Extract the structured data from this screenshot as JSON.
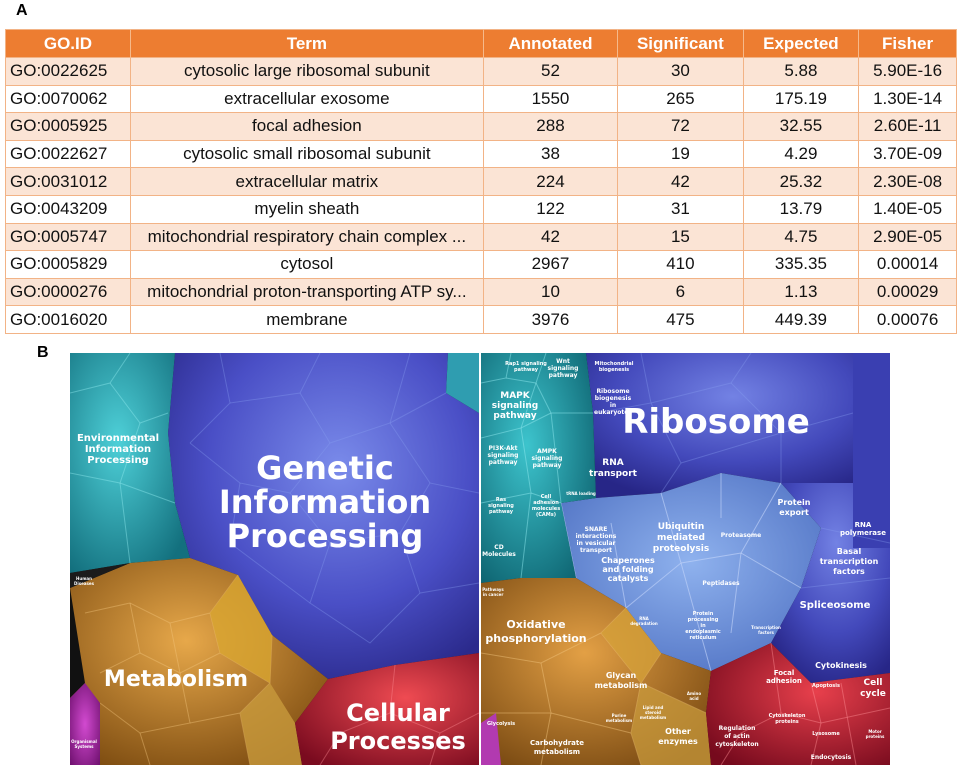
{
  "panel_a_label": "A",
  "panel_b_label": "B",
  "table": {
    "headers": [
      "GO.ID",
      "Term",
      "Annotated",
      "Significant",
      "Expected",
      "Fisher"
    ],
    "rows": [
      [
        "GO:0022625",
        "cytosolic large ribosomal subunit",
        "52",
        "30",
        "5.88",
        "5.90E-16"
      ],
      [
        "GO:0070062",
        "extracellular exosome",
        "1550",
        "265",
        "175.19",
        "1.30E-14"
      ],
      [
        "GO:0005925",
        "focal adhesion",
        "288",
        "72",
        "32.55",
        "2.60E-11"
      ],
      [
        "GO:0022627",
        "cytosolic small ribosomal subunit",
        "38",
        "19",
        "4.29",
        "3.70E-09"
      ],
      [
        "GO:0031012",
        "extracellular matrix",
        "224",
        "42",
        "25.32",
        "2.30E-08"
      ],
      [
        "GO:0043209",
        "myelin sheath",
        "122",
        "31",
        "13.79",
        "1.40E-05"
      ],
      [
        "GO:0005747",
        "mitochondrial respiratory chain complex ...",
        "42",
        "15",
        "4.75",
        "2.90E-05"
      ],
      [
        "GO:0005829",
        "cytosol",
        "2967",
        "410",
        "335.35",
        "0.00014"
      ],
      [
        "GO:0000276",
        "mitochondrial proton-transporting ATP sy...",
        "10",
        "6",
        "1.13",
        "0.00029"
      ],
      [
        "GO:0016020",
        "membrane",
        "3976",
        "475",
        "449.39",
        "0.00076"
      ]
    ]
  },
  "left_map": {
    "labels": {
      "genetic_1": "Genetic",
      "genetic_2": "Information",
      "genetic_3": "Processing",
      "env_1": "Environmental",
      "env_2": "Information",
      "env_3": "Processing",
      "metabolism": "Metabolism",
      "cellular_1": "Cellular",
      "cellular_2": "Processes",
      "human_diseases_1": "Human",
      "human_diseases_2": "Diseases",
      "organismal_1": "Organismal",
      "organismal_2": "Systems"
    }
  },
  "right_map": {
    "labels": {
      "ribosome": "Ribosome",
      "mapk_1": "MAPK",
      "mapk_2": "signaling",
      "mapk_3": "pathway",
      "rap1_1": "Rap1 signaling",
      "rap1_2": "pathway",
      "wnt_1": "Wnt",
      "wnt_2": "signaling",
      "wnt_3": "pathway",
      "mito_1": "Mitochondrial",
      "mito_2": "biogenesis",
      "ribo_bio_1": "Ribosome",
      "ribo_bio_2": "biogenesis",
      "ribo_bio_3": "in",
      "ribo_bio_4": "eukaryotes",
      "pi3k_1": "PI3K-Akt",
      "pi3k_2": "signaling",
      "pi3k_3": "pathway",
      "ampk_1": "AMPK",
      "ampk_2": "signaling",
      "ampk_3": "pathway",
      "rna_tr_1": "RNA",
      "rna_tr_2": "transport",
      "ras_1": "Ras",
      "ras_2": "signaling",
      "ras_3": "pathway",
      "cam_1": "Cell",
      "cam_2": "adhesion",
      "cam_3": "molecules",
      "cam_4": "(CAMs)",
      "trna": "tRNA loading",
      "cd_1": "CD",
      "cd_2": "Molecules",
      "snare_1": "SNARE",
      "snare_2": "interactions",
      "snare_3": "in vesicular",
      "snare_4": "transport",
      "ubiq_1": "Ubiquitin",
      "ubiq_2": "mediated",
      "ubiq_3": "proteolysis",
      "proteasome": "Proteasome",
      "pexport_1": "Protein",
      "pexport_2": "export",
      "rnapol_1": "RNA",
      "rnapol_2": "polymerase",
      "basal_1": "Basal",
      "basal_2": "transcription",
      "basal_3": "factors",
      "chap_1": "Chaperones",
      "chap_2": "and folding",
      "chap_3": "catalysts",
      "peptidases": "Peptidases",
      "spliceosome": "Spliceosome",
      "rnadeg_1": "RNA",
      "rnadeg_2": "degradation",
      "pproc_1": "Protein",
      "pproc_2": "processing",
      "pproc_3": "in",
      "pproc_4": "endoplasmic",
      "pproc_5": "reticulum",
      "tf_1": "Transcription",
      "tf_2": "factors",
      "oxphos_1": "Oxidative",
      "oxphos_2": "phosphorylation",
      "glycan_1": "Glycan",
      "glycan_2": "metabolism",
      "pathways_cancer_1": "Pathways",
      "pathways_cancer_2": "in cancer",
      "cytokinesis": "Cytokinesis",
      "focal_1": "Focal",
      "focal_2": "adhesion",
      "apoptosis": "Apoptosis",
      "cellcycle_1": "Cell",
      "cellcycle_2": "cycle",
      "glycolysis": "Glycolysis",
      "carb_1": "Carbohydrate",
      "carb_2": "metabolism",
      "other_1": "Other",
      "other_2": "enzymes",
      "actin_1": "Regulation",
      "actin_2": "of actin",
      "actin_3": "cytoskeleton",
      "cytoskel_1": "Cytoskeleton",
      "cytoskel_2": "proteins",
      "lysosome": "Lysosome",
      "endocytosis": "Endocytosis",
      "motor_1": "Motor",
      "motor_2": "proteins",
      "lipid_1": "Lipid and",
      "lipid_2": "steroid",
      "lipid_3": "metabolism",
      "purine_1": "Purine",
      "purine_2": "metabolism",
      "amino_1": "Amino",
      "amino_2": "acid"
    }
  }
}
